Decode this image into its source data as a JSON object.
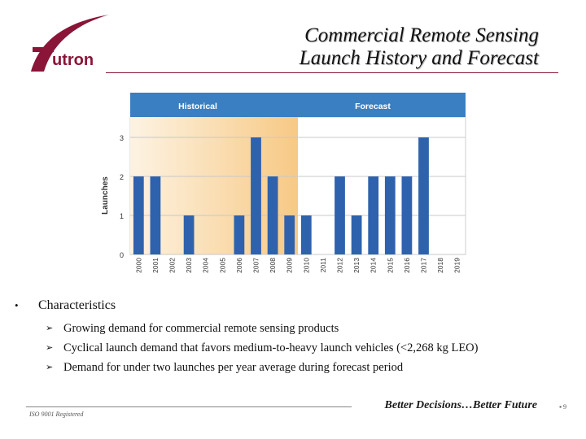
{
  "logo": {
    "text": "utron"
  },
  "title": {
    "line1": "Commercial Remote Sensing",
    "line2": "Launch History and Forecast"
  },
  "chart_data": {
    "type": "bar",
    "ylabel": "Launches",
    "xlabel": "",
    "ylim": [
      0,
      3
    ],
    "yticks": [
      0,
      1,
      2,
      3
    ],
    "grid": true,
    "period_labels": {
      "historical": "Historical",
      "forecast": "Forecast"
    },
    "historical_through": "2010",
    "categories": [
      "2000",
      "2001",
      "2002",
      "2003",
      "2004",
      "2005",
      "2006",
      "2007",
      "2008",
      "2009",
      "2010",
      "2011",
      "2012",
      "2013",
      "2014",
      "2015",
      "2016",
      "2017",
      "2018",
      "2019"
    ],
    "values": [
      2,
      2,
      0,
      1,
      0,
      0,
      1,
      3,
      2,
      1,
      1,
      0,
      2,
      1,
      2,
      2,
      2,
      3,
      0,
      0
    ]
  },
  "bullets": {
    "heading": "Characteristics",
    "items": [
      "Growing demand for commercial remote sensing products",
      "Cyclical launch demand that favors medium-to-heavy launch vehicles (<2,268 kg LEO)",
      "Demand for under two launches per year average during forecast period"
    ]
  },
  "footer": {
    "iso": "ISO 9001 Registered",
    "tagline": "Better Decisions…Better Future",
    "page": "9"
  },
  "colors": {
    "brand": "#8a1538",
    "bar": "#2f62ad",
    "band": "#3a7fc1",
    "historical_glow": "#f7c985"
  }
}
